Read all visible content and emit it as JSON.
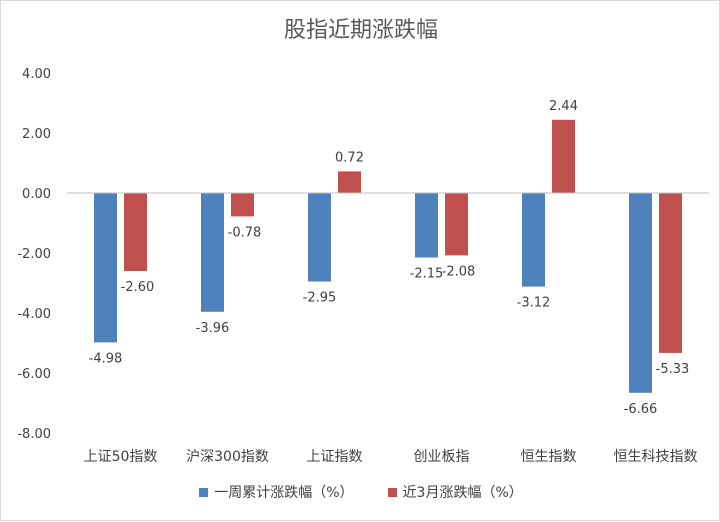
{
  "chart_data": {
    "type": "bar",
    "title": "股指近期涨跌幅",
    "categories": [
      "上证50指数",
      "沪深300指数",
      "上证指数",
      "创业板指",
      "恒生指数",
      "恒生科技指数"
    ],
    "series": [
      {
        "name": "一周累计涨跌幅（%）",
        "color": "#4f81bd",
        "values": [
          -4.98,
          -3.96,
          -2.95,
          -2.15,
          -3.12,
          -6.66
        ]
      },
      {
        "name": "近3月涨跌幅（%）",
        "color": "#c0504d",
        "values": [
          -2.6,
          -0.78,
          0.72,
          -2.08,
          2.44,
          -5.33
        ]
      }
    ],
    "ylim": [
      -8,
      4
    ],
    "yticks": [
      "4.00",
      "2.00",
      "0.00",
      "-2.00",
      "-4.00",
      "-6.00",
      "-8.00"
    ],
    "xlabel": "",
    "ylabel": "",
    "grid": false,
    "legend_position": "bottom"
  }
}
